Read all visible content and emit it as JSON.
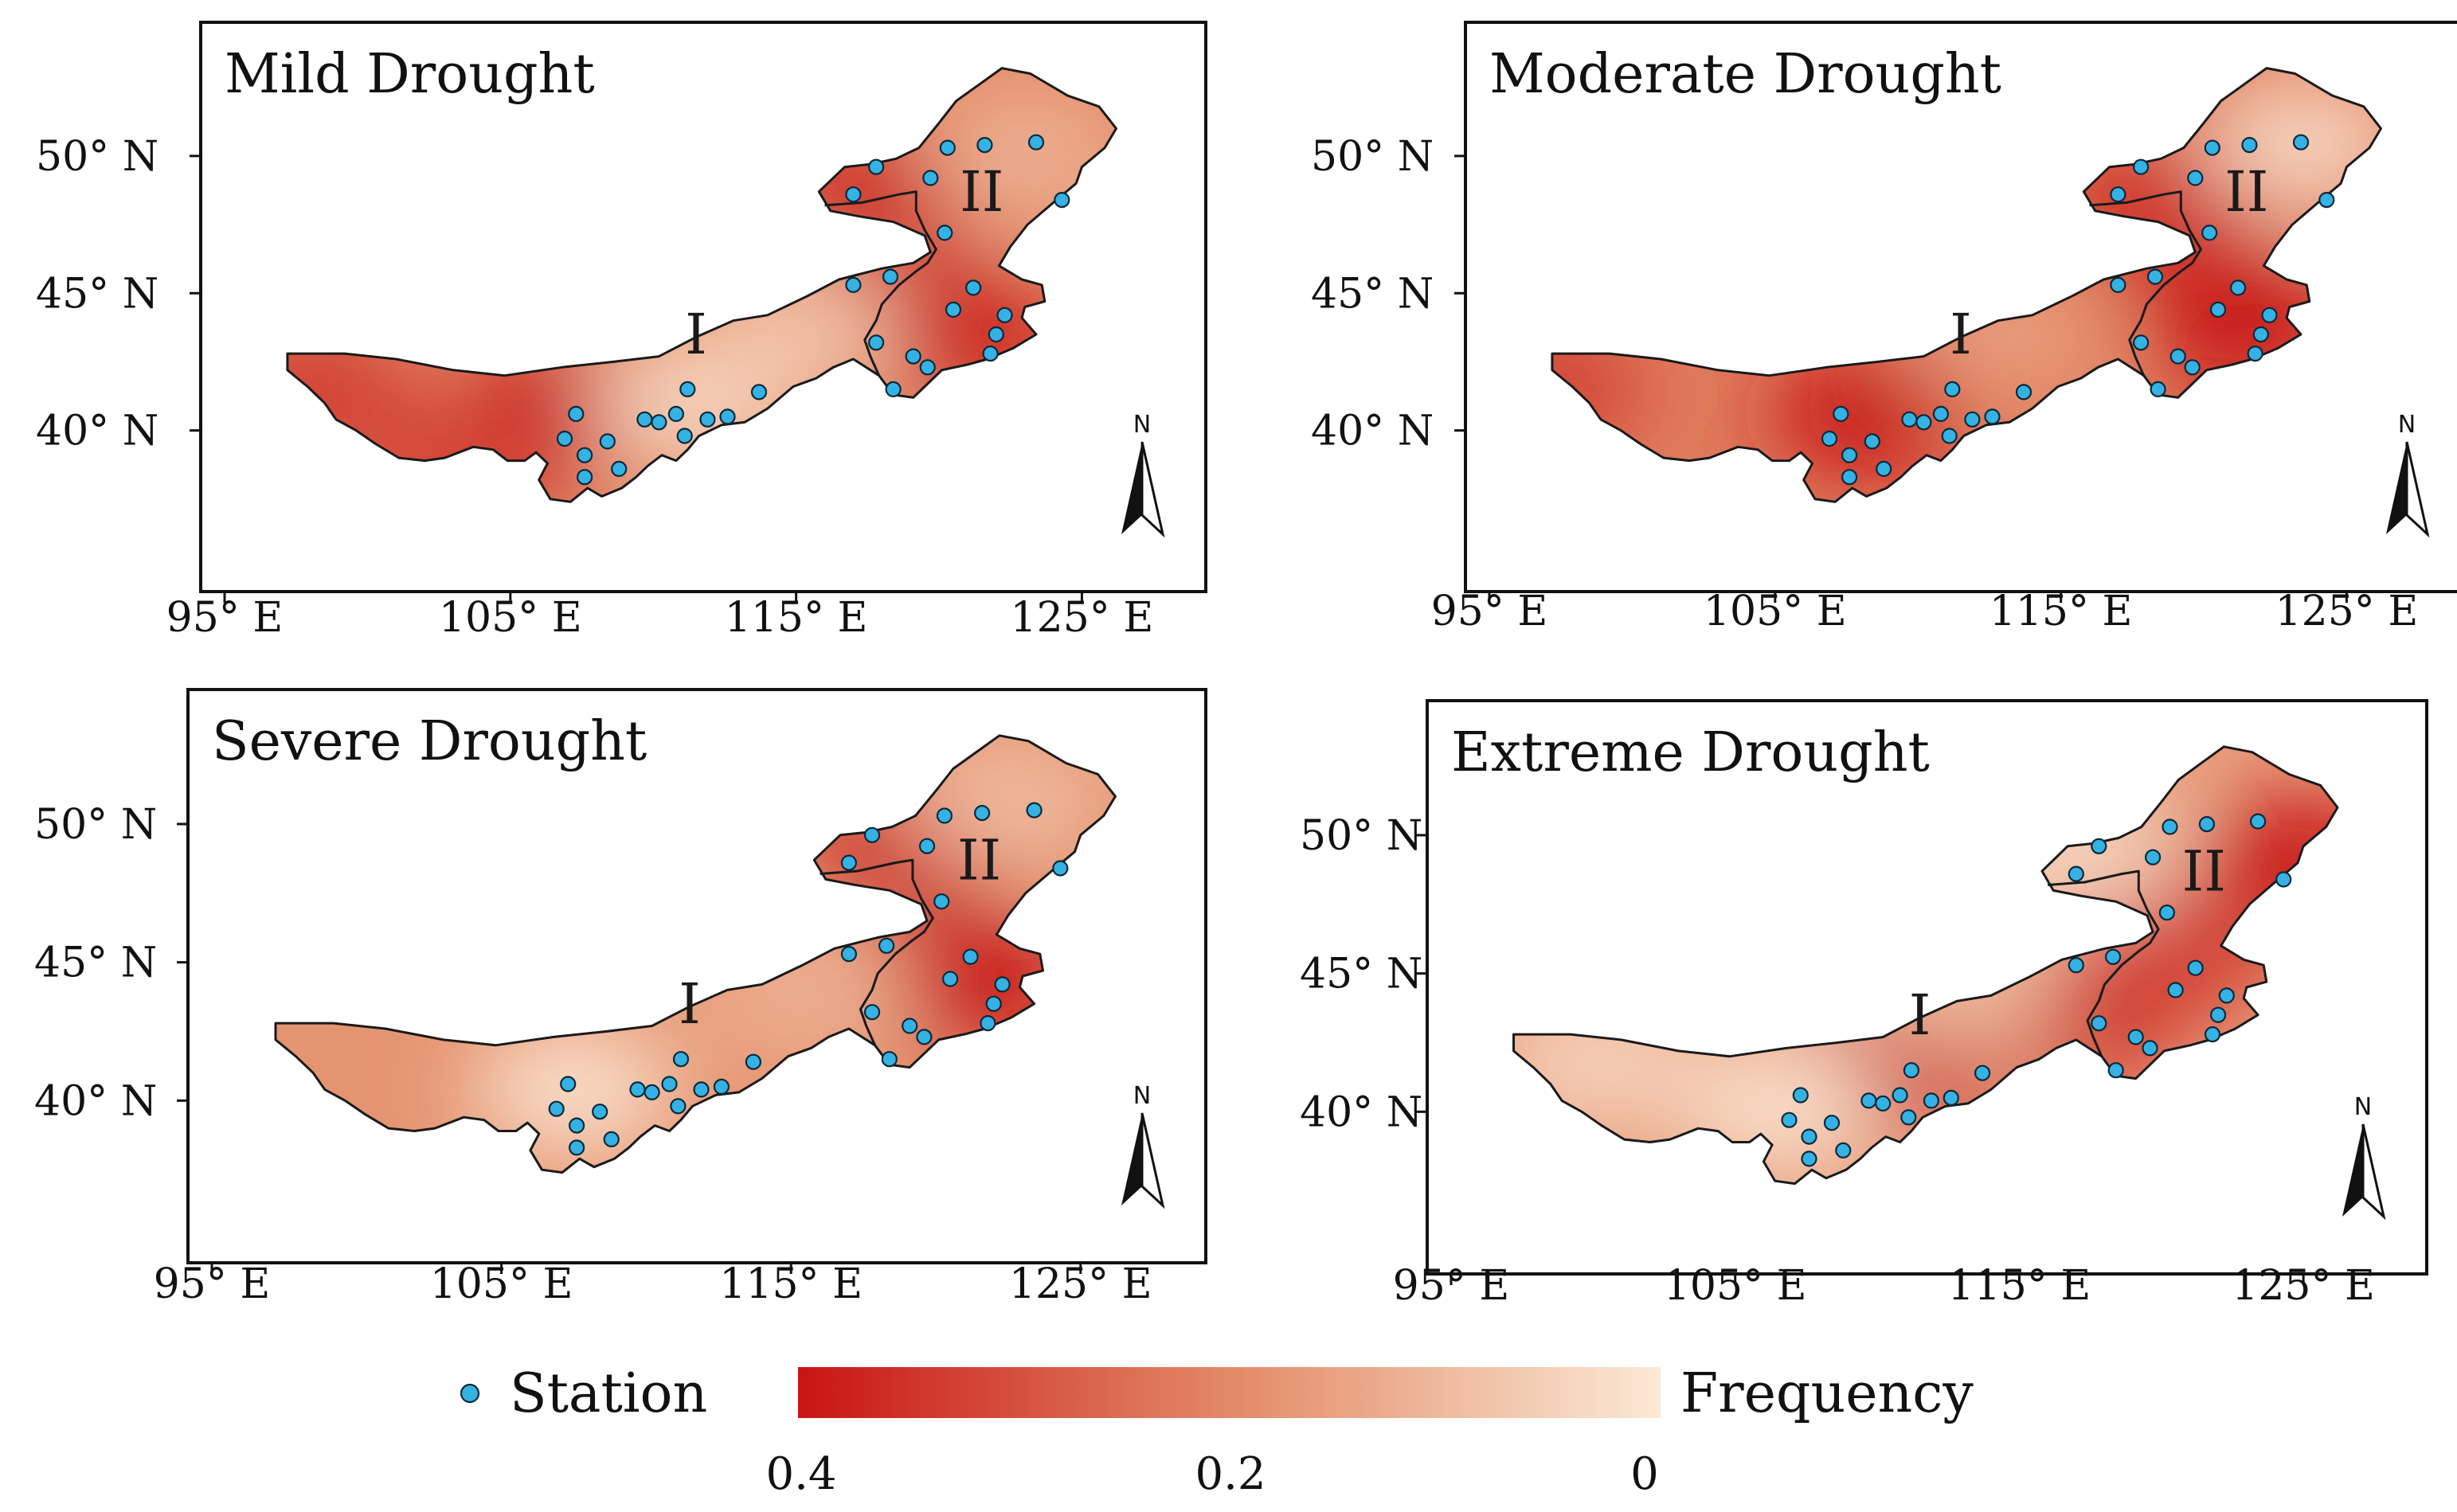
{
  "figure": {
    "colors": {
      "high": "#c81414",
      "mid": "#e38a66",
      "low": "#fbe9d6",
      "station": "#35b2e3",
      "station_edge": "#0b2a3a"
    },
    "panels": [
      {
        "id": "mild",
        "title": "Mild Drought",
        "y_ticks": [
          "50°  N",
          "45°  N",
          "40°  N"
        ],
        "x_ticks": [
          "95°  E",
          "105°  E",
          "115°  E",
          "125°  E"
        ],
        "region_labels": [
          "I",
          "II"
        ],
        "north_arrow": "N",
        "base_frequency": 0.2,
        "hotspots": [
          {
            "lon": 106.8,
            "lat": 40.7,
            "freq": 0.4
          },
          {
            "lon": 98.0,
            "lat": 41.5,
            "freq": 0.33
          },
          {
            "lon": 120.8,
            "lat": 43.5,
            "freq": 0.38
          },
          {
            "lon": 118.0,
            "lat": 48.4,
            "freq": 0.38
          },
          {
            "lon": 103.0,
            "lat": 38.5,
            "freq": 0.32
          },
          {
            "lon": 111.5,
            "lat": 41.0,
            "freq": 0.04
          },
          {
            "lon": 115.0,
            "lat": 43.5,
            "freq": 0.08
          },
          {
            "lon": 123.0,
            "lat": 50.0,
            "freq": 0.12
          }
        ]
      },
      {
        "id": "moderate",
        "title": "Moderate Drought",
        "y_ticks": [
          "50°  N",
          "45°  N",
          "40°  N"
        ],
        "x_ticks": [
          "95°  E",
          "105°  E",
          "115°  E",
          "125°  E"
        ],
        "region_labels": [
          "I",
          "II"
        ],
        "north_arrow": "N",
        "base_frequency": 0.22,
        "hotspots": [
          {
            "lon": 108.3,
            "lat": 40.6,
            "freq": 0.4
          },
          {
            "lon": 97.0,
            "lat": 41.5,
            "freq": 0.32
          },
          {
            "lon": 121.5,
            "lat": 43.8,
            "freq": 0.4
          },
          {
            "lon": 118.5,
            "lat": 48.0,
            "freq": 0.36
          },
          {
            "lon": 113.0,
            "lat": 43.5,
            "freq": 0.16
          },
          {
            "lon": 123.5,
            "lat": 50.5,
            "freq": 0.04
          }
        ]
      },
      {
        "id": "severe",
        "title": "Severe Drought",
        "y_ticks": [
          "50°  N",
          "45°  N",
          "40°  N"
        ],
        "x_ticks": [
          "95°  E",
          "105°  E",
          "115°  E",
          "125°  E"
        ],
        "region_labels": [
          "I",
          "II"
        ],
        "north_arrow": "N",
        "base_frequency": 0.18,
        "hotspots": [
          {
            "lon": 121.5,
            "lat": 44.3,
            "freq": 0.4
          },
          {
            "lon": 119.0,
            "lat": 49.0,
            "freq": 0.38
          },
          {
            "lon": 107.5,
            "lat": 40.4,
            "freq": 0.02
          },
          {
            "lon": 115.5,
            "lat": 44.0,
            "freq": 0.12
          },
          {
            "lon": 122.5,
            "lat": 50.8,
            "freq": 0.1
          }
        ]
      },
      {
        "id": "extreme",
        "title": "Extreme Drought",
        "y_ticks": [
          "50°  N",
          "45°  N",
          "40°  N"
        ],
        "x_ticks": [
          "95°  E",
          "105°  E",
          "115°  E",
          "125°  E"
        ],
        "region_labels": [
          "I",
          "II"
        ],
        "north_arrow": "N",
        "base_frequency": 0.16,
        "hotspots": [
          {
            "lon": 111.0,
            "lat": 41.8,
            "freq": 0.4
          },
          {
            "lon": 117.0,
            "lat": 43.5,
            "freq": 0.38
          },
          {
            "lon": 125.0,
            "lat": 49.0,
            "freq": 0.4
          },
          {
            "lon": 120.3,
            "lat": 45.6,
            "freq": 0.33
          },
          {
            "lon": 106.5,
            "lat": 40.2,
            "freq": 0.02
          },
          {
            "lon": 100.0,
            "lat": 41.8,
            "freq": 0.05
          },
          {
            "lon": 117.0,
            "lat": 49.5,
            "freq": 0.04
          },
          {
            "lon": 113.0,
            "lat": 44.5,
            "freq": 0.1
          }
        ]
      }
    ],
    "legend": {
      "station_label": "Station",
      "colorbar_label": "Frequency",
      "ticks": [
        "0.4",
        "0.2",
        "0"
      ]
    }
  }
}
